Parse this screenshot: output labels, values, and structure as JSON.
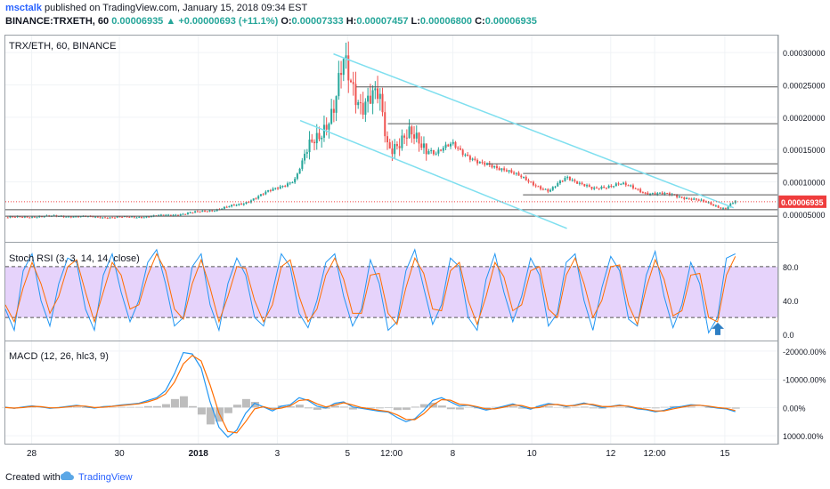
{
  "header": {
    "author": "msctalk",
    "published": "published on TradingView.com, January 15, 2018 09:34 EST",
    "symbol": "BINANCE:TRXETH, 60",
    "price": "0.00006935",
    "change": "▲ +0.00000693 (+11.1%)",
    "o_label": "O:",
    "o_value": "0.00007333",
    "h_label": "H:",
    "h_value": "0.00007457",
    "l_label": "L:",
    "l_value": "0.00006800",
    "c_label": "C:",
    "c_value": "0.00006935"
  },
  "footer": {
    "created": "Created with",
    "brand": "TradingView"
  },
  "colors": {
    "up": "#26a69a",
    "down": "#ef5350",
    "channel": "#7fdfef",
    "hline": "#555555",
    "last_price": "#ef3d3d",
    "k_line": "#2196f3",
    "d_line": "#ff6d00",
    "rsi_band": "#e6d3fb",
    "histogram": "#b2b2b2",
    "arrow": "#2e7fc4"
  },
  "chart_data": [
    {
      "type": "candlestick",
      "title": "TRX/ETH, 60, BINANCE",
      "x_ticks": [
        "28",
        "30",
        "2018",
        "3",
        "5",
        "12:00",
        "8",
        "10",
        "12",
        "12:00",
        "15"
      ],
      "x_tick_pos": [
        1.5,
        6.5,
        11,
        15.5,
        19.5,
        22,
        25.5,
        30,
        34.5,
        37,
        41
      ],
      "x_range": [
        0,
        44
      ],
      "y_range": [
        1e-05,
        0.000325
      ],
      "y_ticks": [
        5e-05,
        0.0001,
        0.00015,
        0.0002,
        0.00025,
        0.0003
      ],
      "y_tick_labels": [
        "0.00005000",
        "0.00010000",
        "0.00015000",
        "0.00020000",
        "0.00025000",
        "0.00030000"
      ],
      "last_price_label": "0.00006935",
      "last_price": 6.935e-05,
      "price_path": [
        [
          0,
          4.5e-05
        ],
        [
          3,
          4.7e-05
        ],
        [
          6,
          4.5e-05
        ],
        [
          8,
          4.6e-05
        ],
        [
          10,
          5e-05
        ],
        [
          12,
          5.7e-05
        ],
        [
          13.5,
          6.6e-05
        ],
        [
          15,
          8.5e-05
        ],
        [
          16.5,
          0.000103
        ],
        [
          17.5,
          0.000165
        ],
        [
          18.7,
          0.000205
        ],
        [
          19.3,
          0.000285
        ],
        [
          20.3,
          0.00022
        ],
        [
          21.3,
          0.00023
        ],
        [
          21.8,
          0.000155
        ],
        [
          23,
          0.00017
        ],
        [
          24.5,
          0.000145
        ],
        [
          25.5,
          0.000158
        ],
        [
          27,
          0.000128
        ],
        [
          28.5,
          0.00012
        ],
        [
          29.5,
          0.000105
        ],
        [
          31,
          8.5e-05
        ],
        [
          32,
          0.000108
        ],
        [
          33.5,
          8.8e-05
        ],
        [
          35,
          9.8e-05
        ],
        [
          36.5,
          8.3e-05
        ],
        [
          38,
          8e-05
        ],
        [
          40,
          6.8e-05
        ],
        [
          41,
          5.8e-05
        ],
        [
          41.6,
          7e-05
        ]
      ],
      "horizontal_lines": [
        {
          "y": 0.000247,
          "x_from": 20
        },
        {
          "y": 0.00019,
          "x_from": 21.8
        },
        {
          "y": 0.000128,
          "x_from": 27.5
        },
        {
          "y": 0.000113,
          "x_from": 29.5
        },
        {
          "y": 8e-05,
          "x_from": 29.5
        },
        {
          "y": 5.7e-05,
          "x_from": 0
        },
        {
          "y": 4.7e-05,
          "x_from": 0
        }
      ],
      "channel_lines": [
        {
          "from": [
            18.7,
            0.000298
          ],
          "to": [
            41.5,
            6e-05
          ]
        },
        {
          "from": [
            16.8,
            0.000195
          ],
          "to": [
            32,
            2.8e-05
          ]
        }
      ]
    },
    {
      "type": "line",
      "title": "Stoch RSI (3, 3, 14, 14, close)",
      "y_range": [
        -5,
        105
      ],
      "y_ticks": [
        0,
        40,
        80
      ],
      "y_tick_labels": [
        "0.0",
        "40.0",
        "80.0"
      ],
      "band": [
        20,
        80
      ],
      "series": [
        {
          "values": [
            30,
            5,
            75,
            95,
            40,
            10,
            60,
            90,
            85,
            30,
            5,
            70,
            95,
            50,
            15,
            40,
            85,
            100,
            60,
            10,
            20,
            80,
            95,
            35,
            5,
            60,
            90,
            70,
            20,
            10,
            50,
            95,
            80,
            25,
            8,
            40,
            85,
            95,
            45,
            10,
            30,
            88,
            60,
            5,
            15,
            75,
            100,
            55,
            12,
            35,
            90,
            80,
            20,
            5,
            65,
            95,
            50,
            15,
            45,
            90,
            70,
            10,
            25,
            85,
            95,
            40,
            5,
            55,
            92,
            75,
            18,
            10,
            70,
            98,
            45,
            8,
            35,
            85,
            60,
            2,
            20,
            90,
            95
          ]
        },
        {
          "values": [
            35,
            15,
            55,
            85,
            60,
            25,
            45,
            80,
            88,
            50,
            15,
            50,
            85,
            70,
            30,
            35,
            70,
            95,
            75,
            30,
            18,
            60,
            88,
            55,
            15,
            45,
            80,
            78,
            40,
            15,
            35,
            80,
            88,
            45,
            15,
            30,
            70,
            90,
            65,
            25,
            25,
            70,
            72,
            25,
            12,
            55,
            90,
            72,
            30,
            28,
            75,
            85,
            40,
            12,
            45,
            85,
            68,
            28,
            35,
            75,
            80,
            30,
            20,
            70,
            90,
            60,
            20,
            40,
            80,
            82,
            35,
            12,
            55,
            88,
            65,
            22,
            28,
            70,
            72,
            20,
            15,
            70,
            92
          ]
        }
      ],
      "arrow_x": 40.6
    },
    {
      "type": "line",
      "title": "MACD (12, 26, hlc3, 9)",
      "y_range": [
        12500,
        -22500
      ],
      "y_ticks": [
        -20000,
        -10000,
        0,
        10000
      ],
      "y_tick_labels": [
        "-20000.00%",
        "-10000.00%",
        "0.00%",
        "10000.00%"
      ],
      "series": [
        {
          "values": [
            -100,
            300,
            -200,
            -600,
            -200,
            300,
            0,
            -400,
            -800,
            -300,
            200,
            -300,
            -500,
            -900,
            -1200,
            -1500,
            -2500,
            -3500,
            -6000,
            -12000,
            -19500,
            -19000,
            -14000,
            -2000,
            7000,
            10500,
            8000,
            2000,
            -1500,
            -200,
            1200,
            -500,
            -1000,
            -3500,
            -2500,
            -500,
            200,
            -1500,
            -2000,
            -200,
            300,
            800,
            1300,
            1600,
            3500,
            5000,
            4000,
            1000,
            -2500,
            -3500,
            -2000,
            -500,
            -800,
            0,
            900,
            300,
            -500,
            -1300,
            -300,
            600,
            -600,
            -1400,
            -1000,
            -300,
            -900,
            -1600,
            -800,
            0,
            -400,
            -900,
            -300,
            500,
            800,
            1500,
            1000,
            0,
            -400,
            -1000,
            -800,
            -300,
            200,
            500,
            1500
          ]
        },
        {
          "values": [
            0,
            200,
            0,
            -400,
            -300,
            100,
            100,
            -200,
            -600,
            -500,
            0,
            -100,
            -400,
            -700,
            -1000,
            -1300,
            -2000,
            -3000,
            -4800,
            -9000,
            -15500,
            -18500,
            -16500,
            -8000,
            2000,
            8500,
            9000,
            5000,
            500,
            -300,
            600,
            200,
            -600,
            -2500,
            -2800,
            -1300,
            -200,
            -900,
            -1700,
            -900,
            0,
            500,
            1000,
            1400,
            2600,
            4200,
            4300,
            2200,
            -800,
            -2800,
            -2600,
            -1200,
            -900,
            -300,
            500,
            500,
            -100,
            -900,
            -700,
            200,
            0,
            -1000,
            -1100,
            -600,
            -700,
            -1300,
            -1100,
            -400,
            -300,
            -700,
            -500,
            200,
            600,
            1200,
            1200,
            500,
            -100,
            -700,
            -800,
            -500,
            0,
            300,
            1100
          ]
        }
      ],
      "histogram": [
        -100,
        100,
        -200,
        -200,
        100,
        200,
        -100,
        -200,
        -200,
        200,
        200,
        -200,
        -100,
        -200,
        -200,
        -200,
        -500,
        -500,
        -1200,
        -3000,
        -4000,
        -500,
        2500,
        6000,
        5000,
        2000,
        -1000,
        -3000,
        -2000,
        100,
        600,
        -700,
        -400,
        -1000,
        300,
        800,
        400,
        -600,
        -300,
        700,
        300,
        300,
        300,
        200,
        900,
        800,
        -300,
        -1200,
        -1700,
        -700,
        600,
        700,
        100,
        300,
        400,
        -200,
        -400,
        -400,
        400,
        400,
        -600,
        -400,
        100,
        300,
        -200,
        -300,
        300,
        400,
        -100,
        -200,
        200,
        300,
        200,
        300,
        -200,
        -500,
        -300,
        -300,
        0,
        200,
        200,
        200,
        400
      ]
    }
  ]
}
